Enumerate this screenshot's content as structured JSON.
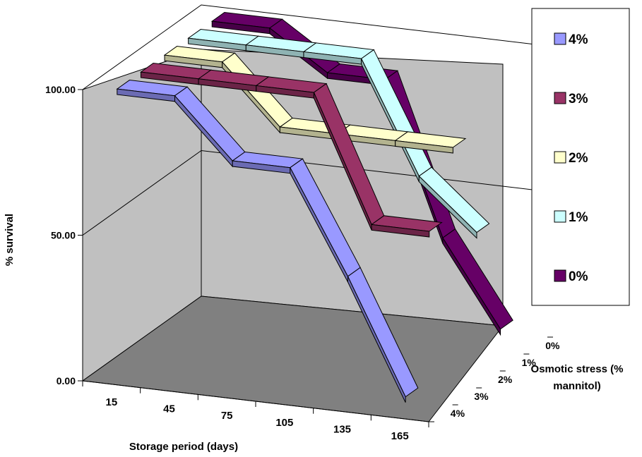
{
  "chart_data": {
    "type": "line",
    "subtype": "3d-ribbon",
    "title": "",
    "xlabel": "Storage period (days)",
    "ylabel": "% survival",
    "zlabel": "Osmotic stress (% mannitol)",
    "zlabel_lines": [
      "Osmotic stress (%",
      "mannitol)"
    ],
    "x": [
      15,
      45,
      75,
      105,
      135,
      165
    ],
    "x_tick_labels": [
      "15",
      "45",
      "75",
      "105",
      "135",
      "165"
    ],
    "z_categories": [
      "0%",
      "1%",
      "2%",
      "3%",
      "4%"
    ],
    "y_ticks": [
      0,
      50,
      100
    ],
    "y_tick_labels": [
      "0.00",
      "50.00",
      "100.00"
    ],
    "ylim": [
      0,
      100
    ],
    "grid": true,
    "legend_position": "right",
    "series": [
      {
        "name": "4%",
        "color": "#9999ff",
        "values": [
          100,
          100,
          80,
          80,
          45,
          6
        ]
      },
      {
        "name": "3%",
        "color": "#993366",
        "values": [
          100,
          100,
          100,
          100,
          57,
          57
        ]
      },
      {
        "name": "2%",
        "color": "#ffffcc",
        "values": [
          100,
          100,
          80,
          80,
          80,
          80
        ]
      },
      {
        "name": "1%",
        "color": "#ccffff",
        "values": [
          100,
          100,
          100,
          100,
          62,
          45
        ]
      },
      {
        "name": "0%",
        "color": "#660066",
        "values": [
          100,
          100,
          87,
          87,
          35,
          6
        ]
      }
    ]
  }
}
